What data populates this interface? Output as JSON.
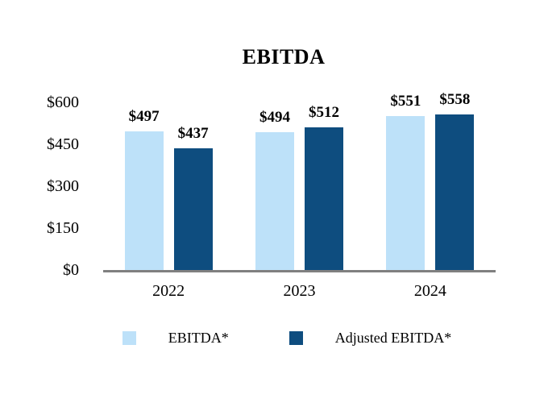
{
  "chart_data": {
    "type": "bar",
    "title": "EBITDA",
    "categories": [
      "2022",
      "2023",
      "2024"
    ],
    "series": [
      {
        "name": "EBITDA*",
        "color": "#BDE1F9",
        "values": [
          497,
          494,
          551
        ],
        "value_labels": [
          "$497",
          "$494",
          "$551"
        ]
      },
      {
        "name": "Adjusted EBITDA*",
        "color": "#0E4D7F",
        "values": [
          437,
          512,
          558
        ],
        "value_labels": [
          "$437",
          "$512",
          "$558"
        ]
      }
    ],
    "y_axis": {
      "min": 0,
      "max": 600,
      "ticks": [
        {
          "label": "$0",
          "value": 0
        },
        {
          "label": "$150",
          "value": 150
        },
        {
          "label": "$300",
          "value": 300
        },
        {
          "label": "$450",
          "value": 450
        },
        {
          "label": "$600",
          "value": 600
        }
      ]
    },
    "xlabel": "",
    "ylabel": "",
    "grid": false,
    "legend_position": "bottom",
    "axis_line_color": "#808080",
    "background_color": "#FFFFFF",
    "text_color": "#000000"
  }
}
